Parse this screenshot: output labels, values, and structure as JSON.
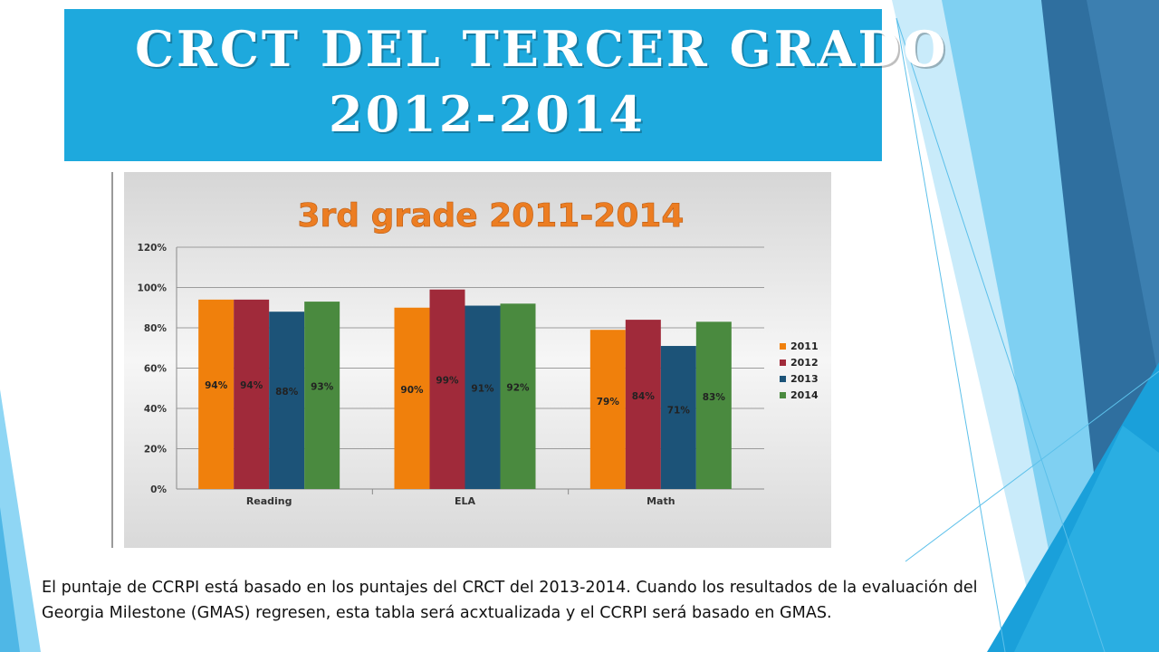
{
  "title": {
    "line1": "CRCT DEL TERCER GRADO",
    "line2": "2012-2014"
  },
  "caption": "El puntaje de CCRPI está basado en los puntajes del CRCT del 2013-2014. Cuando los resultados de la evaluación del Georgia Milestone (GMAS) regresen, esta tabla será acxtualizada y el CCRPI será basado en GMAS.",
  "colors": {
    "banner": "#1ea9dd",
    "series_2011": "#f0800c",
    "series_2012": "#a02a3a",
    "series_2013": "#1c5378",
    "series_2014": "#4a8a3f",
    "chart_title": "#ec7d22"
  },
  "chart_data": {
    "type": "bar",
    "title": "3rd grade 2011-2014",
    "categories": [
      "Reading",
      "ELA",
      "Math"
    ],
    "series": [
      {
        "name": "2011",
        "values": [
          94,
          90,
          79
        ]
      },
      {
        "name": "2012",
        "values": [
          94,
          99,
          84
        ]
      },
      {
        "name": "2013",
        "values": [
          88,
          91,
          71
        ]
      },
      {
        "name": "2014",
        "values": [
          93,
          92,
          83
        ]
      }
    ],
    "value_suffix": "%",
    "ylim": [
      0,
      120
    ],
    "yticks": [
      "0%",
      "20%",
      "40%",
      "60%",
      "80%",
      "100%",
      "120%"
    ],
    "xlabel": "",
    "ylabel": "",
    "grid": true,
    "legend_position": "right"
  }
}
